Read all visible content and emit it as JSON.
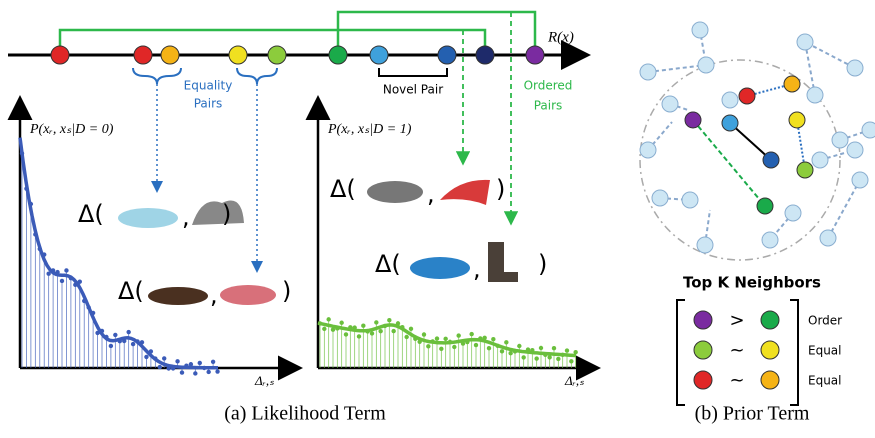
{
  "top_axis": {
    "label": "R(x)"
  },
  "annotations": {
    "equality": [
      "Equality",
      "Pairs"
    ],
    "novel": "Novel Pair",
    "ordered": [
      "Ordered",
      "Pairs"
    ]
  },
  "left_plot": {
    "y_label": "P(xᵣ, xₛ|D = 0)",
    "x_label": "Δᵣ,ₛ",
    "expressions": [
      {
        "open": "Δ(",
        "sep": ",",
        "close": ")"
      },
      {
        "open": "Δ(",
        "sep": ",",
        "close": ")"
      }
    ]
  },
  "right_plot": {
    "y_label": "P(xᵣ, xₛ|D = 1)",
    "x_label": "Δᵣ,ₛ",
    "expressions": [
      {
        "open": "Δ(",
        "sep": ",",
        "close": ")"
      },
      {
        "open": "Δ(",
        "sep": ",",
        "close": ")"
      }
    ]
  },
  "captions": [
    "(a) Likelihood Term",
    "(b) Prior Term"
  ],
  "prior": {
    "title": "Top K Neighbors",
    "rows": [
      {
        "symbol": ">",
        "label": "Order"
      },
      {
        "symbol": "~",
        "label": "Equal"
      },
      {
        "symbol": "~",
        "label": "Equal"
      }
    ]
  }
}
